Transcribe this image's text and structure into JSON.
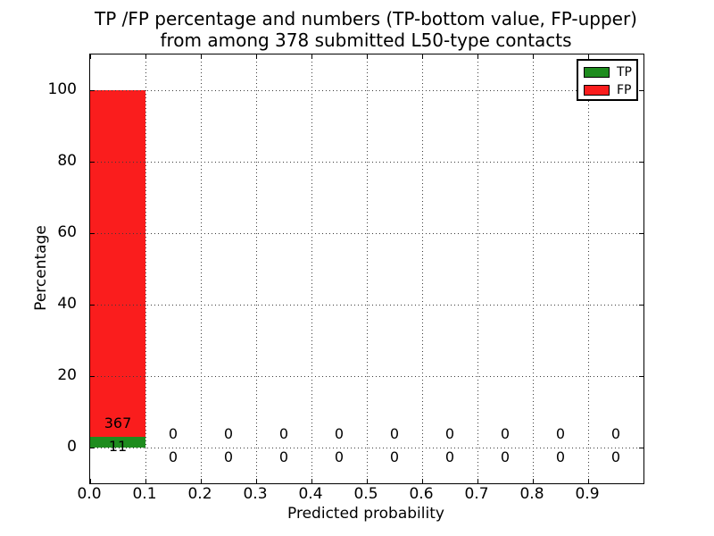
{
  "title": {
    "line1": "TP /FP percentage and numbers (TP-bottom value, FP-upper)",
    "line2": "from among 378 submitted L50-type contacts"
  },
  "chart_data": {
    "type": "bar",
    "stacked": true,
    "title": "TP /FP percentage and numbers (TP-bottom value, FP-upper)\nfrom among 378 submitted L50-type contacts",
    "xlabel": "Predicted probability",
    "ylabel": "Percentage",
    "total": 378,
    "bin_edges": [
      0.0,
      0.1,
      0.2,
      0.3,
      0.4,
      0.5,
      0.6,
      0.7,
      0.8,
      0.9,
      1.0
    ],
    "bin_centers": [
      0.05,
      0.15,
      0.25,
      0.35,
      0.45,
      0.55,
      0.65,
      0.75,
      0.85,
      0.95
    ],
    "series": [
      {
        "name": "TP",
        "color": "#1e8c1e",
        "counts": [
          11,
          0,
          0,
          0,
          0,
          0,
          0,
          0,
          0,
          0
        ],
        "percent": [
          2.91,
          0,
          0,
          0,
          0,
          0,
          0,
          0,
          0,
          0
        ]
      },
      {
        "name": "FP",
        "color": "#fa1d1d",
        "counts": [
          367,
          0,
          0,
          0,
          0,
          0,
          0,
          0,
          0,
          0
        ],
        "percent": [
          97.09,
          0,
          0,
          0,
          0,
          0,
          0,
          0,
          0,
          0
        ]
      }
    ],
    "annotation_rows": {
      "upper": "FP count",
      "lower": "TP count"
    },
    "xticks": [
      "0.0",
      "0.1",
      "0.2",
      "0.3",
      "0.4",
      "0.5",
      "0.6",
      "0.7",
      "0.8",
      "0.9"
    ],
    "yticks": [
      "0",
      "20",
      "40",
      "60",
      "80",
      "100"
    ],
    "xlim": [
      0.0,
      1.0
    ],
    "ylim": [
      -10,
      110
    ],
    "grid": {
      "style": "dotted",
      "color": "#3a3a3a"
    },
    "legend": {
      "position": "upper-right",
      "entries": [
        {
          "label": "TP",
          "color": "#1e8c1e"
        },
        {
          "label": "FP",
          "color": "#fa1d1d"
        }
      ]
    }
  }
}
